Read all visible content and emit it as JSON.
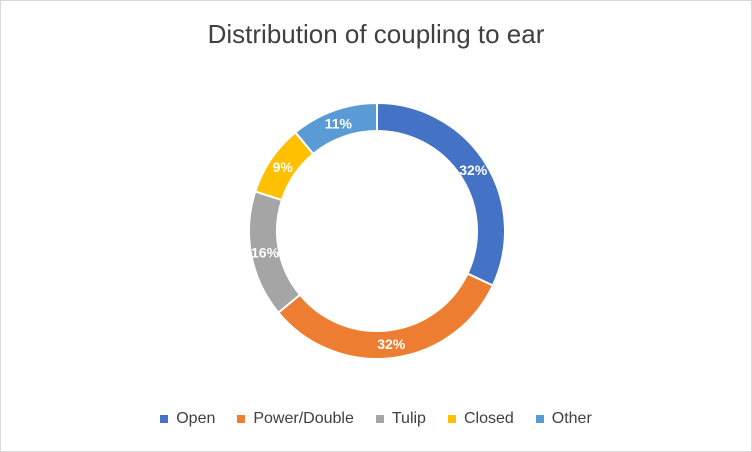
{
  "chart_data": {
    "type": "pie",
    "variant": "doughnut",
    "title": "Distribution of coupling to ear",
    "categories": [
      "Open",
      "Power/Double",
      "Tulip",
      "Closed",
      "Other"
    ],
    "values": [
      32,
      32,
      16,
      9,
      11
    ],
    "labels": [
      "32%",
      "32%",
      "16%",
      "9%",
      "11%"
    ],
    "colors": [
      "#4472C4",
      "#ED7D31",
      "#A5A5A5",
      "#FFC000",
      "#5B9BD5"
    ],
    "legend_position": "bottom"
  }
}
